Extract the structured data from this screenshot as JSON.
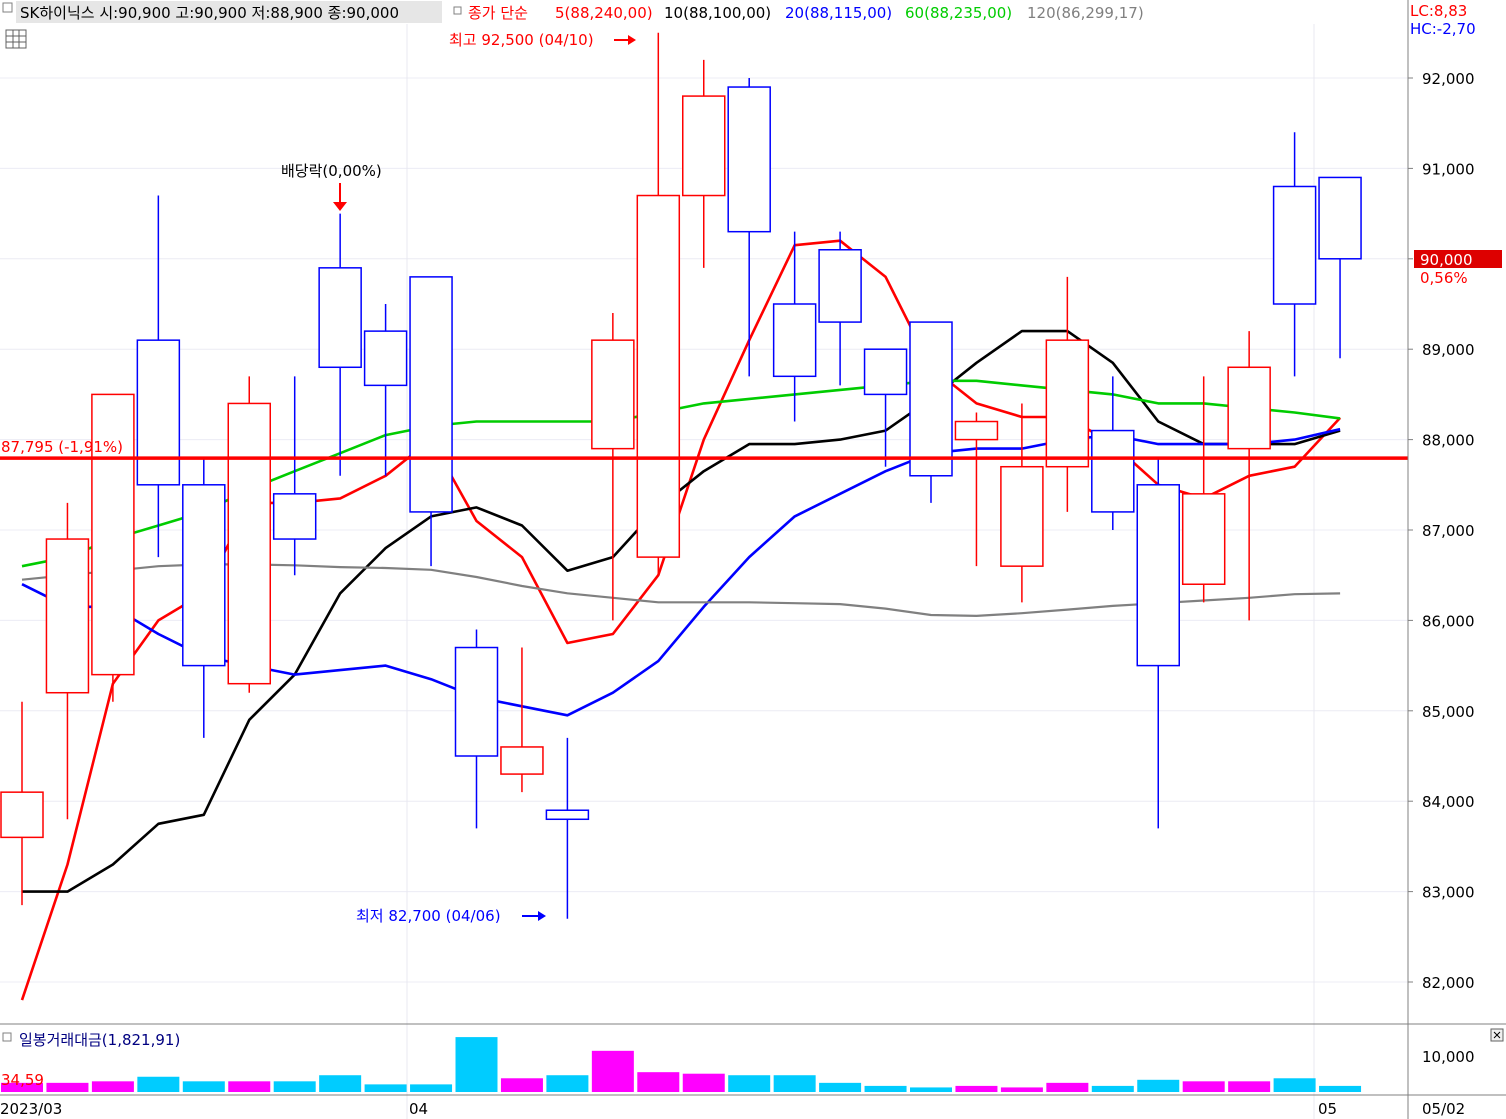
{
  "header": {
    "stock_info": "SK하이닉스 시:90,900 고:90,900 저:88,900 종:90,000",
    "ma_label": "종가 단순",
    "ma_items": [
      {
        "text": "5(88,240,00)",
        "color": "#ff0000"
      },
      {
        "text": "10(88,100,00)",
        "color": "#000000"
      },
      {
        "text": "20(88,115,00)",
        "color": "#0000ff"
      },
      {
        "text": "60(88,235,00)",
        "color": "#00cc00"
      },
      {
        "text": "120(86,299,17)",
        "color": "#808080"
      }
    ],
    "lc": "LC:8,83",
    "hc": "HC:-2,70"
  },
  "annotations": {
    "high": "최고 92,500 (04/10)",
    "low": "최저 82,700 (04/06)",
    "dividend": "배당락(0,00%)",
    "hline_label": "87,795 (-1,91%)"
  },
  "price_tag": {
    "value": "90,000",
    "change": "0,56%"
  },
  "volume_panel": {
    "title": "일봉거래대금(1,821,91)",
    "left_value": "34,59",
    "y_tick": "10,000"
  },
  "colors": {
    "up": "#ff0000",
    "down": "#0000ff",
    "volume_up": "#ff00ff",
    "volume_down": "#00ccff",
    "hline": "#ff0000"
  },
  "chart_data": {
    "type": "candlestick",
    "price_axis": {
      "ylim": [
        81500,
        93100
      ],
      "ticks": [
        "82,000",
        "83,000",
        "84,000",
        "85,000",
        "86,000",
        "87,000",
        "88,000",
        "89,000",
        "90,000",
        "91,000",
        "92,000"
      ]
    },
    "x_labels": [
      "2023/03",
      "04",
      "05",
      "05/02"
    ],
    "hline": 87795,
    "candles": [
      {
        "o": 83600,
        "h": 85100,
        "l": 82850,
        "c": 84100
      },
      {
        "o": 85200,
        "h": 87300,
        "l": 83800,
        "c": 86900
      },
      {
        "o": 85400,
        "h": 88500,
        "l": 85100,
        "c": 88500
      },
      {
        "o": 89100,
        "h": 90700,
        "l": 86700,
        "c": 87500
      },
      {
        "o": 87500,
        "h": 87800,
        "l": 84700,
        "c": 85500
      },
      {
        "o": 85300,
        "h": 88700,
        "l": 85200,
        "c": 88400
      },
      {
        "o": 87400,
        "h": 88700,
        "l": 86500,
        "c": 86900
      },
      {
        "o": 89900,
        "h": 90500,
        "l": 87600,
        "c": 88800
      },
      {
        "o": 89200,
        "h": 89500,
        "l": 87600,
        "c": 88600
      },
      {
        "o": 89800,
        "h": 89800,
        "l": 86600,
        "c": 87200
      },
      {
        "o": 85700,
        "h": 85900,
        "l": 83700,
        "c": 84500
      },
      {
        "o": 84300,
        "h": 85700,
        "l": 84100,
        "c": 84600
      },
      {
        "o": 83900,
        "h": 84700,
        "l": 82700,
        "c": 83800
      },
      {
        "o": 87900,
        "h": 89400,
        "l": 86000,
        "c": 89100
      },
      {
        "o": 86700,
        "h": 92500,
        "l": 86500,
        "c": 90700
      },
      {
        "o": 90700,
        "h": 92200,
        "l": 89900,
        "c": 91800
      },
      {
        "o": 91900,
        "h": 92000,
        "l": 88700,
        "c": 90300
      },
      {
        "o": 89500,
        "h": 90300,
        "l": 88200,
        "c": 88700
      },
      {
        "o": 90100,
        "h": 90300,
        "l": 88600,
        "c": 89300
      },
      {
        "o": 89000,
        "h": 89000,
        "l": 87700,
        "c": 88500
      },
      {
        "o": 89300,
        "h": 89300,
        "l": 87300,
        "c": 87600
      },
      {
        "o": 88000,
        "h": 88300,
        "l": 86600,
        "c": 88200
      },
      {
        "o": 86600,
        "h": 88400,
        "l": 86200,
        "c": 87700
      },
      {
        "o": 87700,
        "h": 89800,
        "l": 87200,
        "c": 89100
      },
      {
        "o": 88100,
        "h": 88700,
        "l": 87000,
        "c": 87200
      },
      {
        "o": 87500,
        "h": 87800,
        "l": 83700,
        "c": 85500
      },
      {
        "o": 86400,
        "h": 88700,
        "l": 86200,
        "c": 87400
      },
      {
        "o": 87900,
        "h": 89200,
        "l": 86000,
        "c": 88800
      },
      {
        "o": 90800,
        "h": 91400,
        "l": 88700,
        "c": 89500
      },
      {
        "o": 90900,
        "h": 90900,
        "l": 88900,
        "c": 90000
      }
    ],
    "series": [
      {
        "name": "5",
        "color": "#ff0000",
        "values": [
          81800,
          83300,
          85300,
          86000,
          86300,
          87300,
          87300,
          87350,
          87600,
          88000,
          87100,
          86700,
          85750,
          85850,
          86500,
          88000,
          89100,
          90150,
          90200,
          89800,
          88800,
          88400,
          88250,
          88250,
          87950,
          87500,
          87350,
          87600,
          87700,
          88240
        ]
      },
      {
        "name": "10",
        "color": "#000000",
        "values": [
          83000,
          83000,
          83300,
          83750,
          83850,
          84900,
          85400,
          86300,
          86800,
          87150,
          87250,
          87050,
          86550,
          86700,
          87250,
          87650,
          87950,
          87950,
          88000,
          88100,
          88450,
          88850,
          89200,
          89200,
          88850,
          88200,
          87950,
          87950,
          87950,
          88100
        ]
      },
      {
        "name": "20",
        "color": "#0000ff",
        "values": [
          86400,
          86150,
          86150,
          85850,
          85600,
          85500,
          85400,
          85450,
          85500,
          85350,
          85150,
          85050,
          84950,
          85200,
          85550,
          86150,
          86700,
          87150,
          87400,
          87650,
          87850,
          87900,
          87900,
          88000,
          88050,
          87950,
          87950,
          87950,
          88000,
          88115
        ]
      },
      {
        "name": "60",
        "color": "#00cc00",
        "values": [
          86600,
          86700,
          86900,
          87050,
          87200,
          87450,
          87650,
          87850,
          88050,
          88150,
          88200,
          88200,
          88200,
          88200,
          88300,
          88400,
          88450,
          88500,
          88550,
          88600,
          88650,
          88650,
          88600,
          88550,
          88500,
          88400,
          88400,
          88350,
          88300,
          88235
        ]
      },
      {
        "name": "120",
        "color": "#808080",
        "values": [
          86450,
          86500,
          86550,
          86600,
          86620,
          86620,
          86610,
          86590,
          86580,
          86560,
          86480,
          86380,
          86300,
          86250,
          86200,
          86200,
          86200,
          86190,
          86180,
          86130,
          86060,
          86050,
          86080,
          86120,
          86160,
          86190,
          86220,
          86250,
          86290,
          86299
        ]
      }
    ],
    "volume": [
      6,
      6,
      7,
      10,
      7,
      7,
      7,
      11,
      5,
      5,
      36,
      9,
      11,
      27,
      13,
      12,
      11,
      11,
      6,
      4,
      3,
      4,
      3,
      6,
      4,
      8,
      7,
      7,
      9,
      4
    ]
  }
}
